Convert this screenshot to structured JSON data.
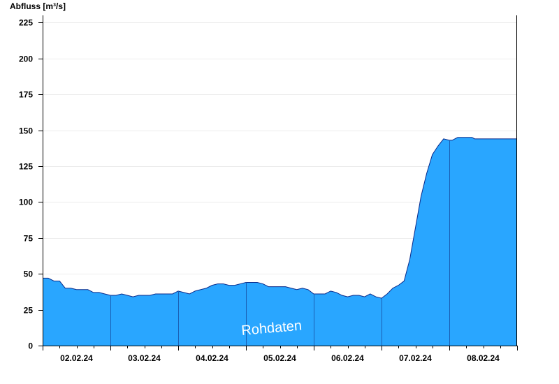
{
  "chart_data": {
    "type": "area",
    "title": "",
    "ylabel": "Abfluss [m³/s]",
    "xlabel": "",
    "ylim": [
      0,
      230
    ],
    "yticks": [
      0,
      25,
      50,
      75,
      100,
      125,
      150,
      175,
      200,
      225
    ],
    "days": [
      "02.02.24",
      "03.02.24",
      "04.02.24",
      "05.02.24",
      "06.02.24",
      "07.02.24",
      "08.02.24"
    ],
    "grid": true,
    "legend": "none",
    "watermark": "Rohdaten",
    "fill_color": "#29a6ff",
    "line_color": "#0a2a8a",
    "divider_color": "#1a5fb4",
    "series": [
      {
        "x_hours": [
          0,
          2,
          4,
          6,
          8,
          10,
          12,
          14,
          16,
          18,
          20,
          22,
          24,
          26,
          28,
          30,
          32,
          34,
          36,
          38,
          40,
          42,
          44,
          46,
          48,
          50,
          52,
          54,
          56,
          58,
          60,
          62,
          64,
          66,
          68,
          70,
          72,
          74,
          76,
          78,
          80,
          82,
          84,
          86,
          88,
          90,
          92,
          94,
          96,
          98,
          100,
          102,
          104,
          106,
          108,
          110,
          112,
          114,
          116,
          118,
          120,
          122,
          124,
          126,
          128,
          130,
          132,
          134,
          136,
          138,
          140,
          142,
          144,
          145,
          146,
          147,
          148,
          149,
          150,
          151,
          152,
          153,
          154,
          155,
          156,
          157,
          158,
          160,
          162,
          164,
          166,
          167
        ],
        "values": [
          47,
          47,
          45,
          45,
          40,
          40,
          39,
          39,
          39,
          37,
          37,
          36,
          35,
          35,
          36,
          35,
          34,
          35,
          35,
          35,
          36,
          36,
          36,
          36,
          38,
          37,
          36,
          38,
          39,
          40,
          42,
          43,
          43,
          42,
          42,
          43,
          44,
          44,
          44,
          43,
          41,
          41,
          41,
          41,
          40,
          39,
          40,
          39,
          36,
          36,
          36,
          38,
          37,
          35,
          34,
          35,
          35,
          34,
          36,
          34,
          33,
          36,
          40,
          42,
          45,
          60,
          82,
          104,
          120,
          133,
          139,
          144,
          143,
          143,
          144,
          145,
          145,
          145,
          145,
          145,
          145,
          144,
          144,
          144,
          144,
          144,
          144,
          144,
          144,
          144,
          144,
          144
        ]
      }
    ]
  }
}
